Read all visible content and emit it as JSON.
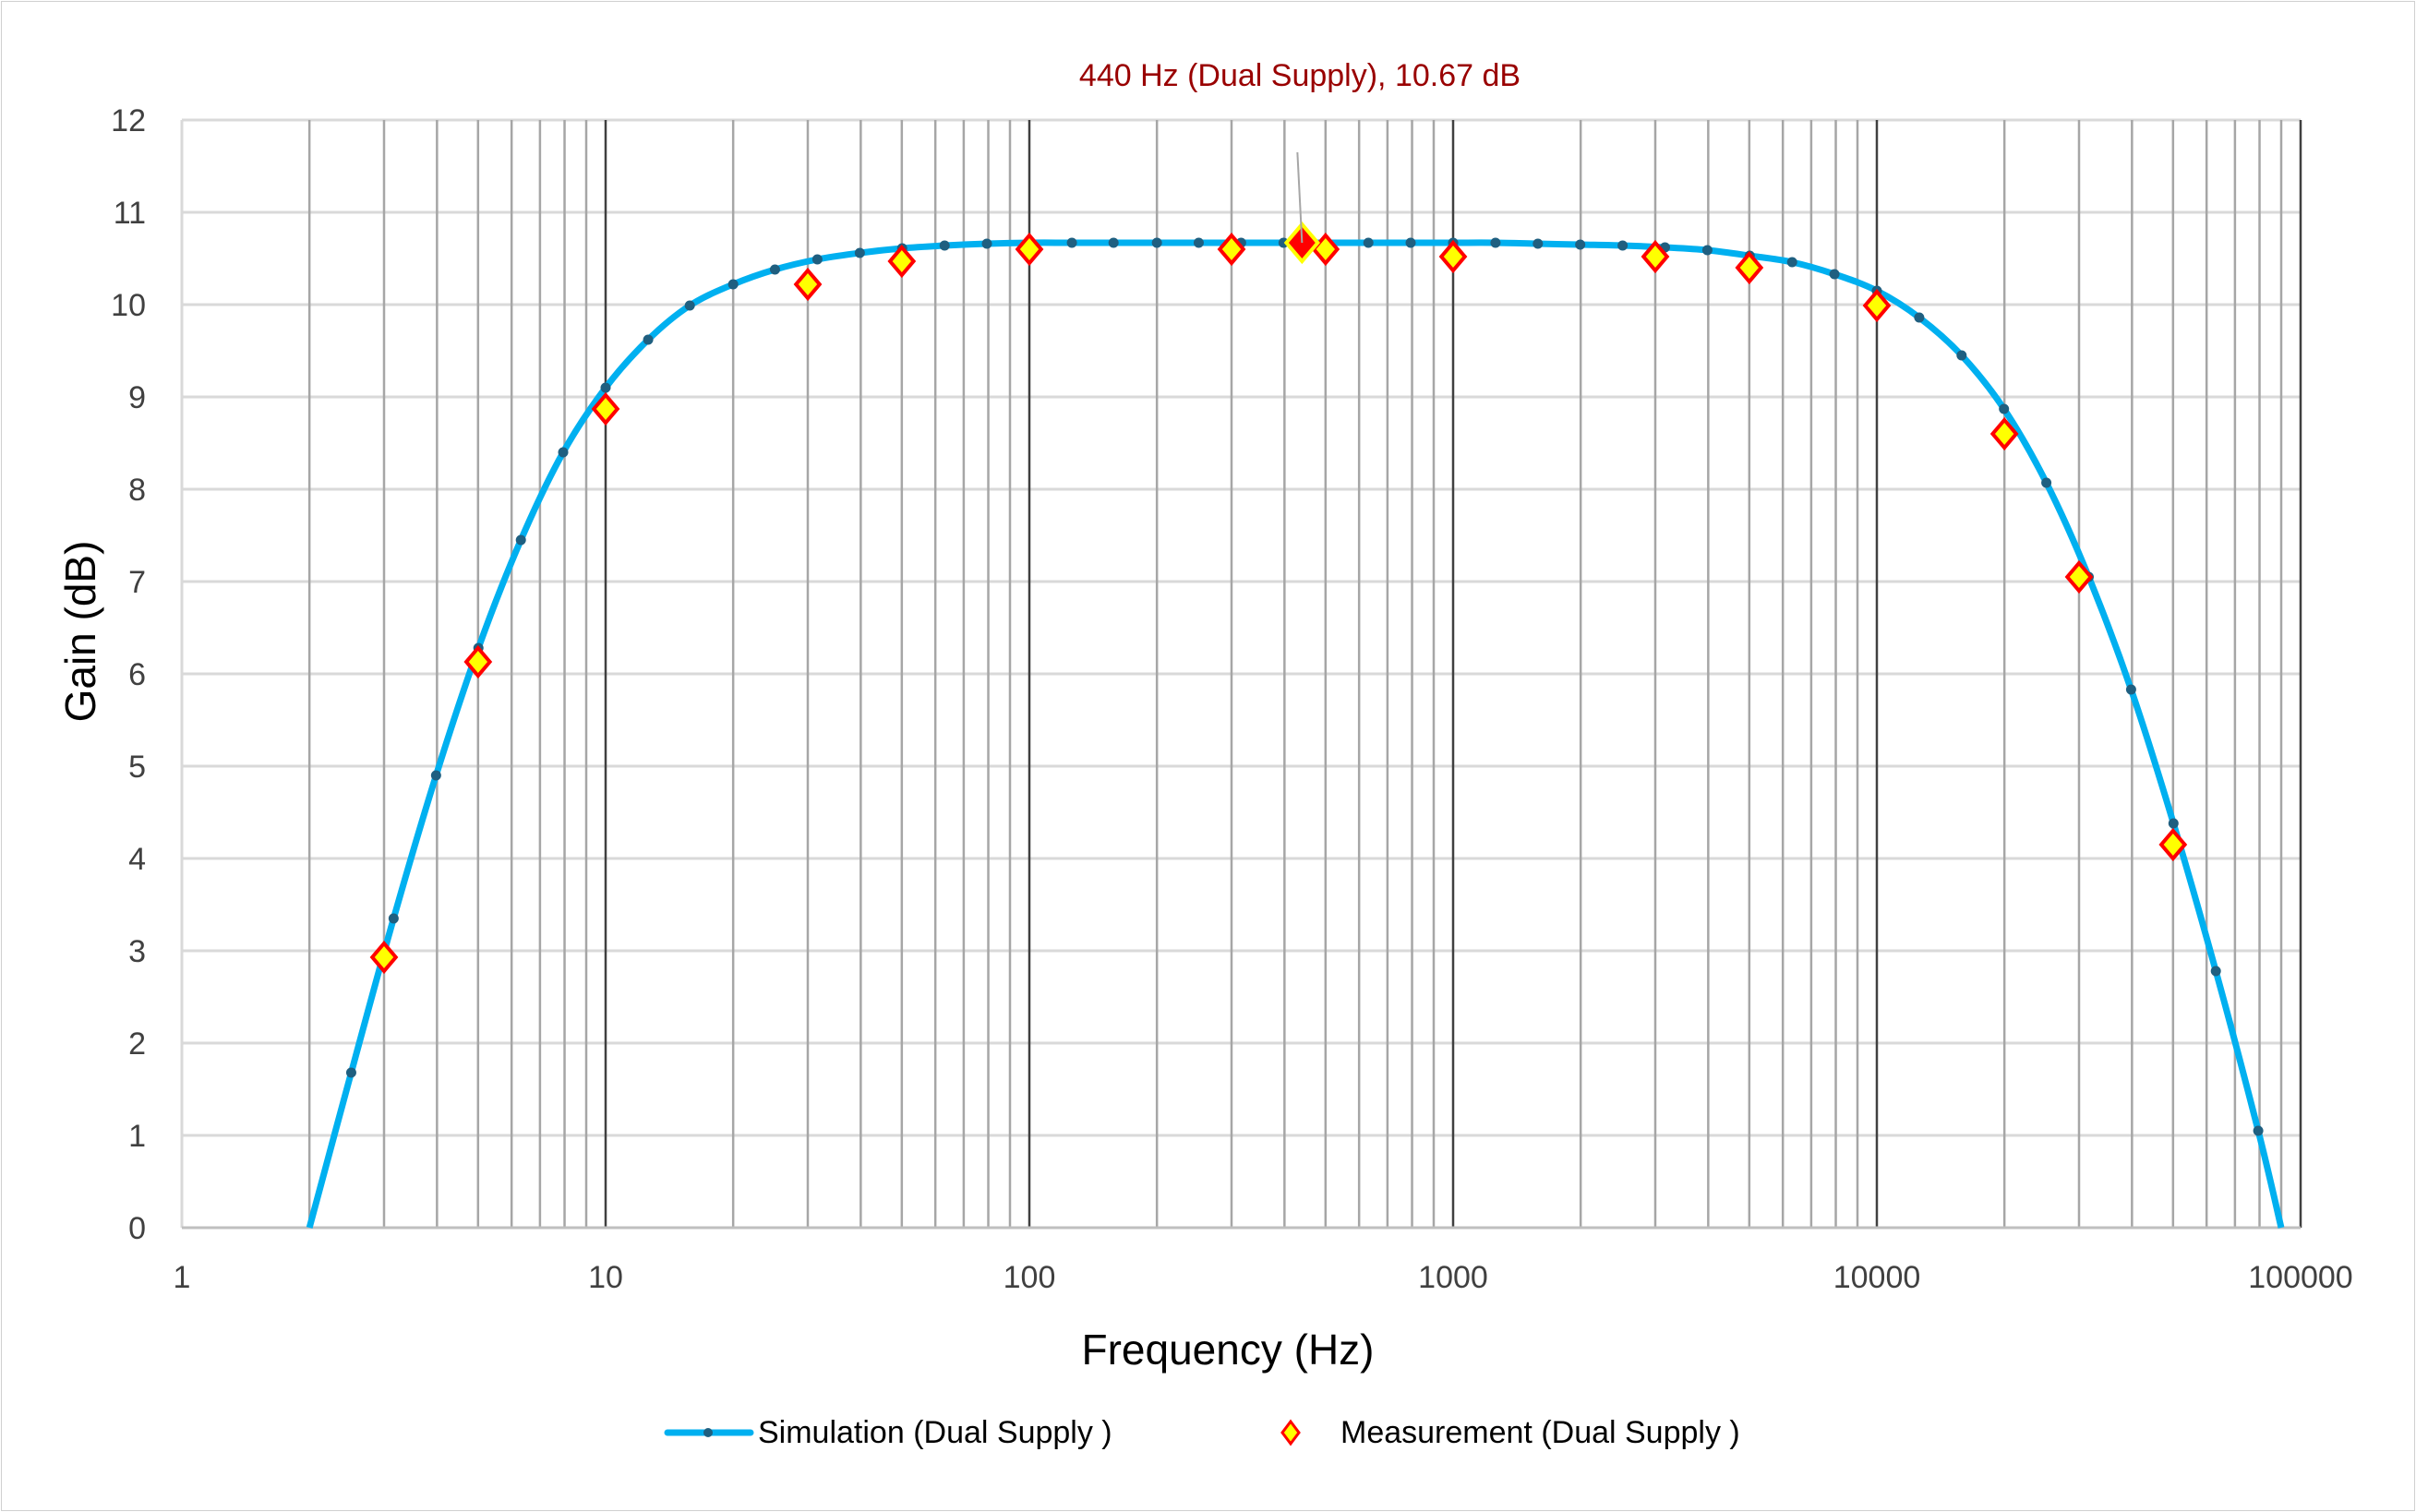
{
  "chart_data": {
    "type": "line",
    "title": "",
    "xlabel": "Frequency (Hz)",
    "ylabel": "Gain (dB)",
    "xscale": "log",
    "xlim": [
      1,
      100000
    ],
    "ylim": [
      0,
      12
    ],
    "x_ticks": [
      "1",
      "10",
      "100",
      "1000",
      "10000",
      "100000"
    ],
    "y_ticks": [
      "0",
      "1",
      "2",
      "3",
      "4",
      "5",
      "6",
      "7",
      "8",
      "9",
      "10",
      "11",
      "12"
    ],
    "grid": true,
    "legend_position": "bottom",
    "annotation": {
      "text": "440 Hz (Dual Supply), 10.67 dB",
      "x": 440,
      "y": 10.67,
      "color": "#990000"
    },
    "series": [
      {
        "name": "Simulation (Dual Supply )",
        "style": "line-with-markers",
        "color": "#00b0f0",
        "marker_color": "#1f5f80",
        "x": [
          2,
          2.51,
          3.16,
          3.98,
          5.01,
          6.31,
          7.94,
          10,
          12.6,
          15.8,
          20,
          25.1,
          31.6,
          39.8,
          50.1,
          63.1,
          79.4,
          100,
          126,
          158,
          200,
          251,
          316,
          398,
          501,
          631,
          794,
          1000,
          1259,
          1585,
          1995,
          2512,
          3162,
          3981,
          5012,
          6310,
          7943,
          10000,
          12589,
          15849,
          19953,
          25119,
          31623,
          39811,
          50119,
          63096,
          79433,
          90000
        ],
        "y": [
          0,
          1.68,
          3.35,
          4.9,
          6.28,
          7.45,
          8.4,
          9.1,
          9.62,
          9.99,
          10.22,
          10.38,
          10.49,
          10.56,
          10.61,
          10.64,
          10.66,
          10.67,
          10.67,
          10.67,
          10.67,
          10.67,
          10.67,
          10.67,
          10.67,
          10.67,
          10.67,
          10.67,
          10.67,
          10.66,
          10.65,
          10.64,
          10.62,
          10.59,
          10.53,
          10.46,
          10.33,
          10.15,
          9.86,
          9.45,
          8.87,
          8.07,
          7.05,
          5.83,
          4.38,
          2.78,
          1.05,
          0
        ]
      },
      {
        "name": "Measurement (Dual Supply )",
        "style": "markers",
        "marker": "diamond",
        "fill": "#ffff00",
        "stroke": "#ff0000",
        "x": [
          3,
          5,
          10,
          30,
          50,
          100,
          300,
          440,
          500,
          1000,
          3000,
          5000,
          10000,
          20000,
          30000,
          50000
        ],
        "y": [
          2.93,
          6.13,
          8.87,
          10.22,
          10.47,
          10.6,
          10.6,
          10.67,
          10.6,
          10.52,
          10.52,
          10.4,
          9.99,
          8.6,
          7.05,
          4.15
        ]
      }
    ]
  }
}
